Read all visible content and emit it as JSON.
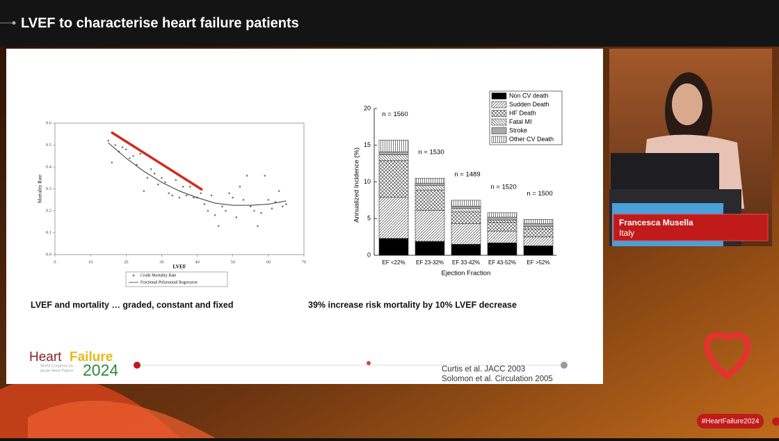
{
  "header": {
    "title": "LVEF to characterise heart failure patients"
  },
  "slide": {
    "scatter_chart": {
      "type": "scatter",
      "x_label": "LVEF",
      "y_label": "Mortality Rate",
      "xlim": [
        0,
        70
      ],
      "xticks": [
        0,
        10,
        20,
        30,
        40,
        50,
        60,
        70
      ],
      "ylim": [
        0,
        0.6
      ],
      "yticks": [
        {
          "value": 0,
          "label": "0.0"
        },
        0.1,
        0.2,
        0.3,
        0.4,
        0.5,
        0.6
      ],
      "series": [
        {
          "name": "Crude Mortality Rate",
          "color": "#777777",
          "x": [
            15,
            16,
            17,
            18,
            19,
            20,
            21,
            22,
            23,
            24,
            25,
            26,
            27,
            28,
            29,
            30,
            31,
            32,
            33,
            34,
            35,
            36,
            37,
            38,
            39,
            40,
            41,
            42,
            43,
            44,
            45,
            46,
            47,
            48,
            49,
            50,
            51,
            52,
            53,
            54,
            55,
            56,
            57,
            58,
            59,
            60,
            61,
            62,
            63,
            64,
            65
          ],
          "values": [
            0.52,
            0.42,
            0.5,
            0.47,
            0.49,
            0.48,
            0.44,
            0.45,
            0.41,
            0.46,
            0.29,
            0.35,
            0.39,
            0.37,
            0.32,
            0.35,
            0.33,
            0.28,
            0.27,
            0.34,
            0.26,
            0.31,
            0.27,
            0.31,
            0.26,
            0.26,
            0.28,
            0.23,
            0.2,
            0.27,
            0.18,
            0.13,
            0.22,
            0.2,
            0.28,
            0.26,
            0.17,
            0.31,
            0.25,
            0.36,
            0.22,
            0.2,
            0.13,
            0.19,
            0.36,
            0.25,
            0.21,
            0.24,
            0.29,
            0.22,
            0.23
          ]
        },
        {
          "name": "Fractional Polynomial Regression",
          "color": "#333333",
          "x": [
            15,
            20,
            25,
            30,
            35,
            40,
            45,
            50,
            55,
            60,
            65
          ],
          "values": [
            0.51,
            0.44,
            0.38,
            0.33,
            0.29,
            0.26,
            0.235,
            0.225,
            0.225,
            0.23,
            0.245
          ]
        }
      ]
    },
    "bar_chart": {
      "type": "stacked-bar",
      "x_label": "Ejection Fraction",
      "y_label": "Annualized Incidence (%)",
      "categories": [
        "EF <22%",
        "EF 23-32%",
        "EF 33-42%",
        "EF 43-52%",
        "EF >52%"
      ],
      "bar_annotations": [
        "n = 1560",
        "n = 1530",
        "n = 1489",
        "n = 1520",
        "n = 1500"
      ],
      "ylim": [
        0,
        20
      ],
      "yticks": [
        0,
        5,
        10,
        15,
        20
      ],
      "series": [
        {
          "name": "Non CV death",
          "color": "#000000",
          "pattern": "solid",
          "values": [
            2.3,
            1.9,
            1.5,
            1.7,
            1.3
          ]
        },
        {
          "name": "Sudden Death",
          "color": "#444444",
          "pattern": "diagonal",
          "values": [
            5.6,
            4.2,
            2.8,
            1.6,
            1.2
          ]
        },
        {
          "name": "HF Death",
          "color": "#444444",
          "pattern": "crosshatch",
          "values": [
            5.0,
            2.8,
            1.6,
            1.2,
            1.1
          ]
        },
        {
          "name": "Fatal MI",
          "color": "#444444",
          "pattern": "backdiagonal",
          "values": [
            0.8,
            0.6,
            0.5,
            0.3,
            0.3
          ]
        },
        {
          "name": "Stroke",
          "color": "#aaaaaa",
          "pattern": "solid",
          "values": [
            0.4,
            0.3,
            0.3,
            0.4,
            0.4
          ]
        },
        {
          "name": "Other CV Death",
          "color": "#444444",
          "pattern": "vertical",
          "values": [
            1.6,
            0.7,
            0.8,
            0.6,
            0.6
          ]
        }
      ]
    },
    "captions": [
      "LVEF and mortality … graded, constant and fixed",
      "39% increase risk mortality by 10% LVEF decrease"
    ],
    "references": [
      "Curtis et al. JACC 2003",
      "Solomon et al. Circulation 2005"
    ],
    "logo": {
      "word1": "Heart",
      "word2": "Failure",
      "year": "2024",
      "subtitle1": "World Congress on",
      "subtitle2": "Acute Heart Failure"
    }
  },
  "speaker": {
    "name": "Francesca Musella",
    "country": "Italy"
  },
  "hashtag": "#HeartFailure2024"
}
